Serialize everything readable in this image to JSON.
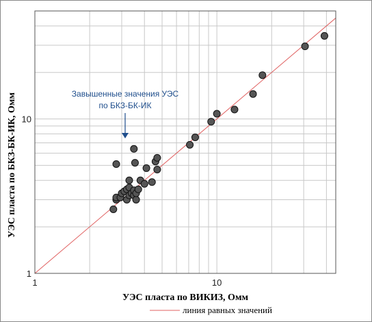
{
  "chart_data": {
    "type": "scatter",
    "title": "",
    "xlabel": "УЭС пласта по ВИКИЗ, Омм",
    "ylabel": "УЭС пласта по БКЗ-БК-ИК, Омм",
    "x_scale": "log",
    "y_scale": "log",
    "xlim": [
      1,
      45
    ],
    "ylim": [
      1,
      50
    ],
    "x_ticks": [
      "1",
      "10"
    ],
    "y_ticks": [
      "1",
      "10"
    ],
    "grid": true,
    "legend": {
      "position": "bottom",
      "entries": [
        "линия равных значений"
      ]
    },
    "annotation": {
      "lines": [
        "Завышенные значения УЭС",
        "по БКЗ-БК-ИК"
      ],
      "target": [
        3.3,
        5.9
      ]
    },
    "reference_line": {
      "name": "линия равных значений",
      "color": "#e06060",
      "from": [
        1,
        1
      ],
      "to": [
        45,
        45
      ]
    },
    "marker_color": "#555555",
    "points": [
      [
        2.7,
        2.6
      ],
      [
        2.8,
        3.0
      ],
      [
        2.8,
        3.1
      ],
      [
        2.8,
        5.1
      ],
      [
        2.95,
        3.1
      ],
      [
        3.0,
        3.3
      ],
      [
        3.1,
        3.4
      ],
      [
        3.2,
        3.0
      ],
      [
        3.2,
        3.5
      ],
      [
        3.3,
        3.2
      ],
      [
        3.3,
        3.6
      ],
      [
        3.3,
        4.0
      ],
      [
        3.4,
        3.3
      ],
      [
        3.5,
        3.2
      ],
      [
        3.5,
        3.45
      ],
      [
        3.5,
        6.4
      ],
      [
        3.55,
        5.2
      ],
      [
        3.6,
        3.0
      ],
      [
        3.6,
        3.3
      ],
      [
        3.7,
        3.5
      ],
      [
        3.8,
        4.0
      ],
      [
        4.0,
        3.8
      ],
      [
        4.1,
        4.8
      ],
      [
        4.4,
        3.9
      ],
      [
        4.6,
        5.3
      ],
      [
        4.7,
        4.7
      ],
      [
        4.7,
        5.6
      ],
      [
        7.1,
        6.8
      ],
      [
        7.6,
        7.6
      ],
      [
        9.3,
        9.6
      ],
      [
        10.0,
        10.8
      ],
      [
        12.5,
        11.5
      ],
      [
        15.8,
        14.5
      ],
      [
        17.8,
        19.2
      ],
      [
        30.5,
        29.5
      ],
      [
        39.0,
        34.5
      ]
    ]
  }
}
